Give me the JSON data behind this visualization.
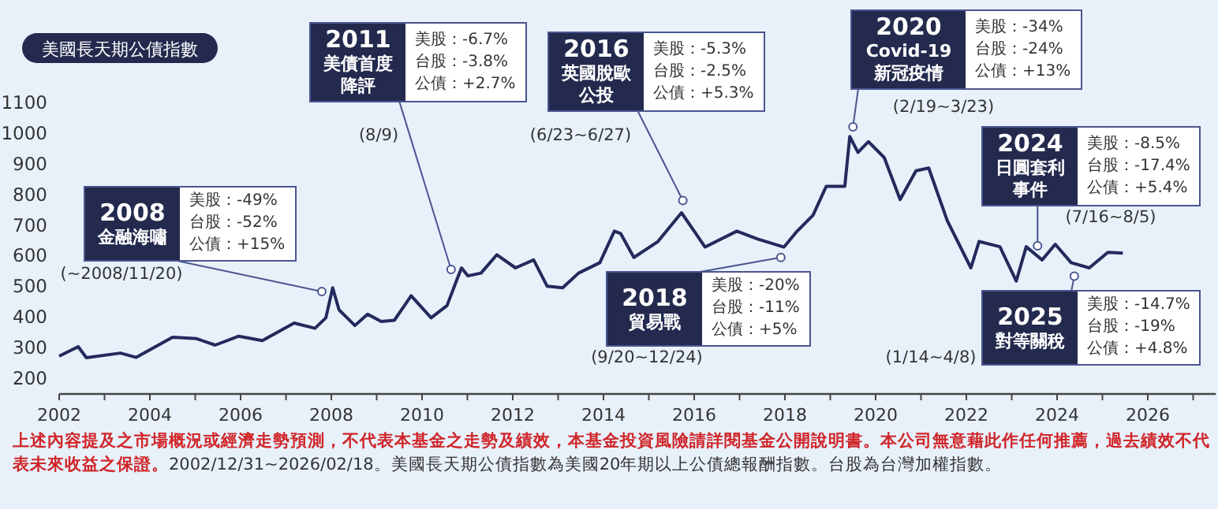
{
  "chart_data": {
    "type": "line",
    "title": "美國長天期公債指數",
    "color": "#232a5c",
    "grid": false,
    "marker": "none",
    "x": [
      2002.0,
      2002.42,
      2002.6,
      2003.35,
      2003.7,
      2004.5,
      2005.03,
      2005.44,
      2005.96,
      2006.48,
      2007.18,
      2007.64,
      2007.88,
      2008.03,
      2008.17,
      2008.52,
      2008.8,
      2009.1,
      2009.39,
      2009.76,
      2010.2,
      2010.55,
      2010.78,
      2010.87,
      2011.01,
      2011.3,
      2011.65,
      2012.06,
      2012.46,
      2012.76,
      2013.1,
      2013.45,
      2013.92,
      2014.24,
      2014.38,
      2014.67,
      2015.2,
      2015.72,
      2016.0,
      2016.24,
      2016.94,
      2017.4,
      2017.98,
      2018.27,
      2018.62,
      2018.91,
      2019.32,
      2019.43,
      2019.61,
      2019.84,
      2020.19,
      2020.54,
      2020.89,
      2021.17,
      2021.58,
      2022.1,
      2022.28,
      2022.74,
      2023.1,
      2023.32,
      2023.67,
      2023.96,
      2024.31,
      2024.71,
      2025.12,
      2025.45
    ],
    "values": [
      272,
      303,
      267,
      282,
      268,
      334,
      329,
      308,
      337,
      323,
      380,
      363,
      397,
      495,
      423,
      372,
      409,
      385,
      389,
      469,
      397,
      437,
      526,
      560,
      534,
      543,
      603,
      560,
      586,
      500,
      495,
      543,
      577,
      680,
      672,
      594,
      646,
      740,
      680,
      628,
      680,
      654,
      628,
      680,
      732,
      826,
      826,
      989,
      937,
      972,
      920,
      783,
      877,
      886,
      714,
      560,
      646,
      629,
      517,
      629,
      586,
      637,
      577,
      560,
      611,
      608
    ],
    "xlim": [
      2002,
      2027.5
    ],
    "ylim": [
      200,
      1100
    ],
    "xticks": [
      2002,
      {
        "value": 2003,
        "label": null
      },
      2004,
      {
        "value": 2005,
        "label": null
      },
      2006,
      {
        "value": 2007,
        "label": null
      },
      2008,
      {
        "value": 2009,
        "label": null
      },
      2010,
      {
        "value": 2011,
        "label": null
      },
      2012,
      {
        "value": 2013,
        "label": null
      },
      2014,
      {
        "value": 2015,
        "label": null
      },
      2016,
      {
        "value": 2017,
        "label": null
      },
      2018,
      {
        "value": 2019,
        "label": null
      },
      2020,
      {
        "value": 2021,
        "label": null
      },
      2022,
      {
        "value": 2023,
        "label": null
      },
      2024,
      {
        "value": 2025,
        "label": null
      },
      2026,
      {
        "value": 2027,
        "label": null
      }
    ],
    "yticks": [
      200,
      300,
      400,
      500,
      600,
      700,
      800,
      900,
      1000,
      1100
    ],
    "annotations": [
      {
        "text": "2008金融海嘯",
        "x": 2007.79,
        "y": 483
      },
      "美股：-49%",
      "台股：-52%",
      "公債：+15%",
      "(~2008/11/20)",
      {
        "text": "2011美債首度降評",
        "x": 2010.64,
        "y": 555
      },
      "美股：-6.7%",
      "台股：-3.8%",
      "公債：+2.7%",
      "(8/9)",
      {
        "text": "2016英國脫歐公投",
        "x": 2015.75,
        "y": 780
      },
      "美股：-5.3%",
      "台股：-2.5%",
      "公債：+5.3%",
      "(6/23~6/27)",
      {
        "text": "2020Covid-19新冠疫情",
        "x": 2019.5,
        "y": 1020
      },
      "美股：-34%",
      "台股：-24%",
      "公債：+13%",
      "(2/19~3/23)",
      {
        "text": "2024日圓套利事件",
        "x": 2023.57,
        "y": 632
      },
      "美股：-8.5%",
      "台股：-17.4%",
      "公債：+5.4%",
      "(7/16~8/5)",
      {
        "text": "2018貿易戰",
        "x": 2017.91,
        "y": 594
      },
      "美股：-20%",
      "台股：-11%",
      "公債：+5%",
      "(9/20~12/24)",
      {
        "text": "2025對等關稅",
        "x": 2024.38,
        "y": 533
      },
      "美股：-14.7%",
      "台股：-19%",
      "公債：+4.8%",
      "(1/14~4/8)",
      "上述內容提及之市場概況或經濟走勢預測，不代表本基金之走勢及績效，本基金投資風險請詳閱基金公開說明書。本公司無意藉此作任何推薦，過去績效不代表未來收益之保證。",
      "2002/12/31~2026/02/18。美國長天期公債指數為美國20年期以上公債總報酬指數。台股為台灣加權指數。"
    ]
  }
}
